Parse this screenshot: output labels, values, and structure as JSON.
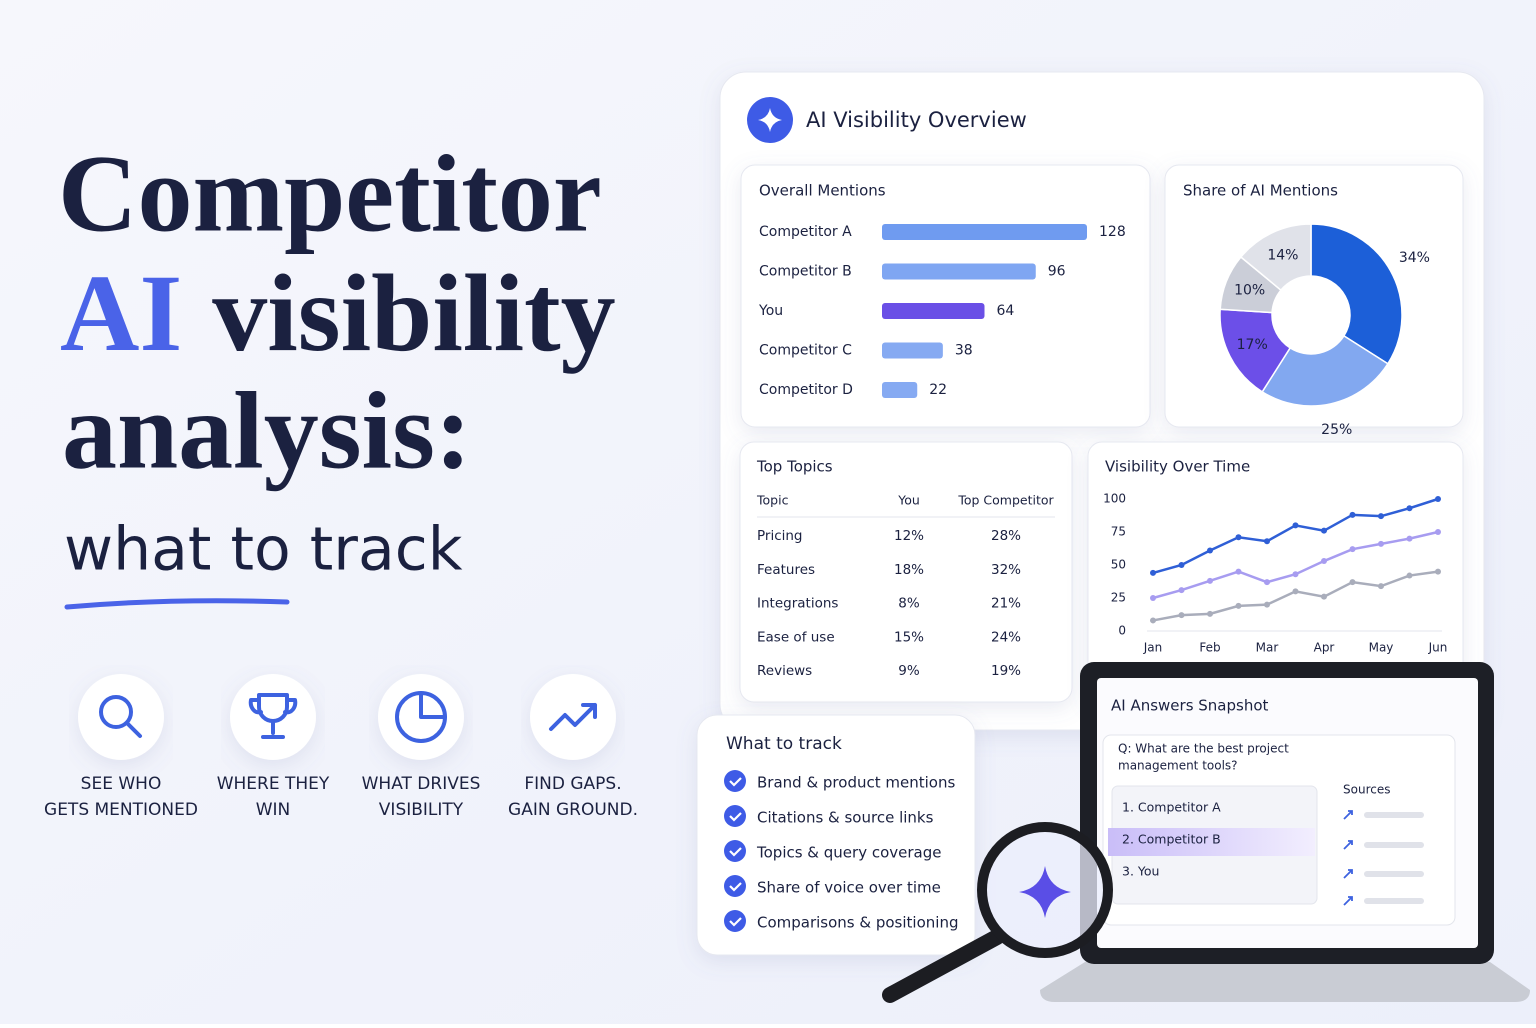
{
  "headline": {
    "line1": "Competitor",
    "highlight": "AI",
    "line2": "visibility",
    "line3": "analysis:",
    "subtitle": "what to track"
  },
  "features": [
    {
      "icon": "search",
      "lines": [
        "SEE WHO",
        "GETS MENTIONED"
      ]
    },
    {
      "icon": "trophy",
      "lines": [
        "WHERE THEY",
        "WIN"
      ]
    },
    {
      "icon": "pie",
      "lines": [
        "WHAT DRIVES",
        "VISIBILITY"
      ]
    },
    {
      "icon": "trend",
      "lines": [
        "FIND GAPS.",
        "GAIN GROUND."
      ]
    }
  ],
  "dashboard": {
    "title": "AI Visibility Overview",
    "mentions": {
      "type": "bar",
      "title": "Overall Mentions",
      "categories": [
        "Competitor A",
        "Competitor B",
        "You",
        "Competitor C",
        "Competitor D"
      ],
      "values": [
        128,
        96,
        64,
        38,
        22
      ],
      "colors": [
        "#6f9bf0",
        "#7fa6f2",
        "#6a4fe6",
        "#86aaf2",
        "#86aaf2"
      ],
      "xlim": [
        0,
        128
      ]
    },
    "share": {
      "type": "pie",
      "title": "Share of AI Mentions",
      "values": [
        34,
        25,
        17,
        10,
        14
      ],
      "value_labels": [
        "34%",
        "25%",
        "17%",
        "10%",
        "14%"
      ],
      "colors": [
        "#1c5fd8",
        "#82a8f0",
        "#6c4fe8",
        "#cbced8",
        "#e0e2e9"
      ]
    },
    "topics": {
      "title": "Top Topics",
      "header": [
        "Topic",
        "You",
        "Top Competitor"
      ],
      "rows": [
        [
          "Pricing",
          "12%",
          "28%"
        ],
        [
          "Features",
          "18%",
          "32%"
        ],
        [
          "Integrations",
          "8%",
          "21%"
        ],
        [
          "Ease of use",
          "15%",
          "24%"
        ],
        [
          "Reviews",
          "9%",
          "19%"
        ]
      ]
    },
    "time": {
      "type": "line",
      "title": "Visibility Over Time",
      "categories": [
        "Jan",
        null,
        "Feb",
        null,
        "Mar",
        null,
        "Apr",
        null,
        "May",
        null,
        "Jun"
      ],
      "ylim": [
        0,
        100
      ],
      "yticks": [
        0,
        25,
        50,
        75,
        100
      ],
      "series": [
        {
          "color": "#2f5fd6",
          "values": [
            44,
            50,
            61,
            71,
            68,
            80,
            76,
            88,
            87,
            93,
            100
          ]
        },
        {
          "color": "#a79cf0",
          "values": [
            25,
            31,
            38,
            45,
            37,
            43,
            53,
            62,
            66,
            70,
            75
          ]
        },
        {
          "color": "#a9adbb",
          "values": [
            8,
            12,
            13,
            19,
            20,
            30,
            26,
            37,
            34,
            42,
            45
          ]
        }
      ]
    }
  },
  "snapshot": {
    "title": "AI Answers Snapshot",
    "question": [
      "Q: What are the best project",
      "management tools?"
    ],
    "sources": "Sources",
    "answers": [
      "1.  Competitor A",
      "2.  Competitor B",
      "3.  You"
    ]
  },
  "checklist": {
    "title": "What to track",
    "items": [
      "Brand & product mentions",
      "Citations & source links",
      "Topics & query coverage",
      "Share of voice over time",
      "Comparisons & positioning"
    ]
  }
}
